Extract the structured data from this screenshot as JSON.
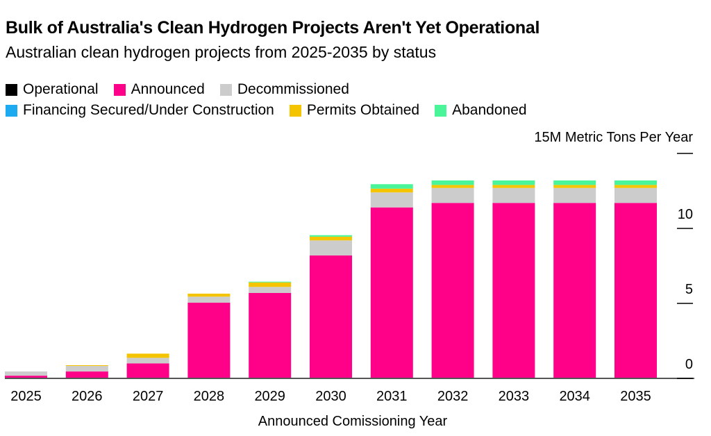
{
  "chart_data": {
    "type": "bar",
    "stacked": true,
    "title": "Bulk of Australia's Clean Hydrogen Projects Aren't Yet Operational",
    "subtitle": "Australian clean hydrogen projects from 2025-2035 by status",
    "xlabel": "Announced Comissioning Year",
    "ylabel": "15M Metric Tons Per Year",
    "ylim": [
      0,
      15
    ],
    "yticks": [
      0,
      5,
      10,
      15
    ],
    "ytick_labels": [
      "0",
      "5",
      "10",
      ""
    ],
    "legend_placement": "top-left",
    "grid": false,
    "categories": [
      "2025",
      "2026",
      "2027",
      "2028",
      "2029",
      "2030",
      "2031",
      "2032",
      "2033",
      "2034",
      "2035"
    ],
    "series": [
      {
        "name": "Operational",
        "color": "#000000",
        "values": [
          0,
          0,
          0,
          0,
          0,
          0,
          0,
          0,
          0,
          0,
          0
        ]
      },
      {
        "name": "Financing Secured/Under Construction",
        "color": "#1eaaf1",
        "values": [
          0,
          0,
          0,
          0,
          0,
          0,
          0,
          0,
          0,
          0,
          0
        ]
      },
      {
        "name": "Announced",
        "color": "#ff0088",
        "values": [
          0.18,
          0.46,
          1.0,
          5.05,
          5.7,
          8.2,
          11.4,
          11.7,
          11.7,
          11.7,
          11.7
        ]
      },
      {
        "name": "Decommissioned",
        "color": "#cccccc",
        "values": [
          0.28,
          0.37,
          0.37,
          0.4,
          0.4,
          1.0,
          1.0,
          1.0,
          1.0,
          1.0,
          1.0
        ]
      },
      {
        "name": "Permits Obtained",
        "color": "#f5c400",
        "values": [
          0,
          0.05,
          0.28,
          0.2,
          0.3,
          0.25,
          0.25,
          0.2,
          0.2,
          0.2,
          0.2
        ]
      },
      {
        "name": "Abandoned",
        "color": "#4af59a",
        "values": [
          0,
          0,
          0,
          0,
          0.05,
          0.1,
          0.3,
          0.3,
          0.3,
          0.3,
          0.3
        ]
      }
    ],
    "legend_rows": [
      [
        0,
        2,
        3
      ],
      [
        1,
        4,
        5
      ]
    ]
  }
}
